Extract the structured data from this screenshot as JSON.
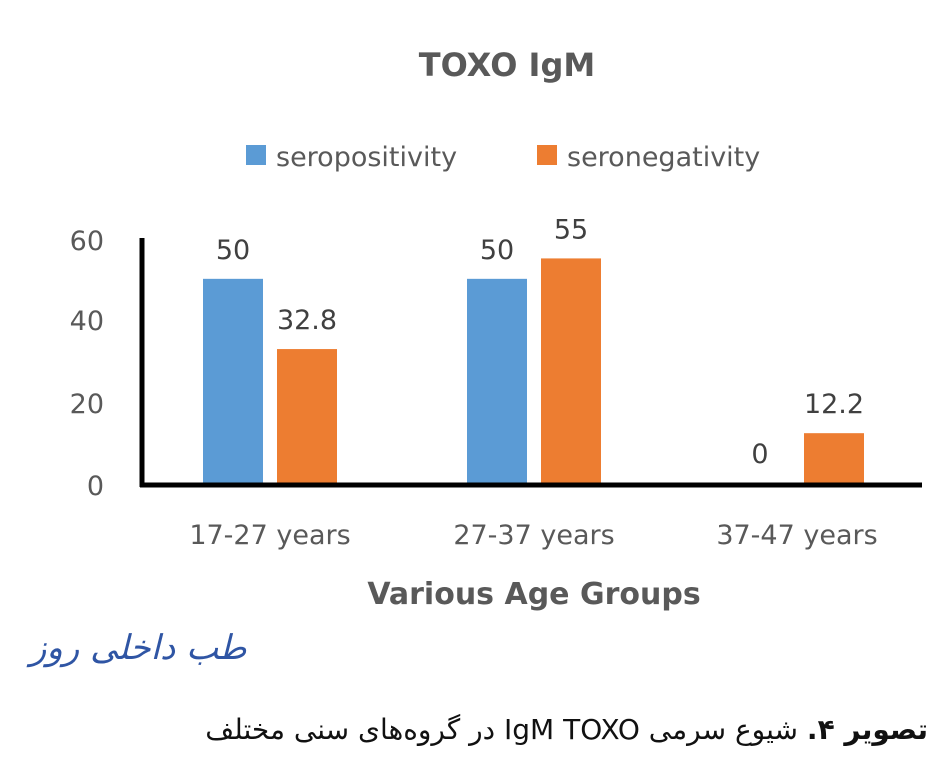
{
  "chart_data": {
    "type": "bar",
    "title": "TOXO IgM",
    "xlabel": "Various Age Groups",
    "ylabel": "",
    "categories": [
      "17-27 years",
      "27-37 years",
      "37-47 years"
    ],
    "series": [
      {
        "name": "seropositivity",
        "values": [
          50,
          50,
          0
        ],
        "labels": [
          "50",
          "50",
          "0"
        ],
        "color": "#5b9bd5"
      },
      {
        "name": "seronegativity",
        "values": [
          32.8,
          55,
          12.2
        ],
        "labels": [
          "32.8",
          "55",
          "12.2"
        ],
        "color": "#ed7d31"
      }
    ],
    "ylim": [
      0,
      60
    ],
    "yticks": [
      "60",
      "40",
      "20",
      "0"
    ],
    "grid": false,
    "legend_position": "top"
  },
  "watermark": "طب داخلی روز",
  "caption": {
    "bold": "تصویر ۴.",
    "text": " شیوع سرمی IgM TOXO در گروه‌های سنی مختلف"
  }
}
